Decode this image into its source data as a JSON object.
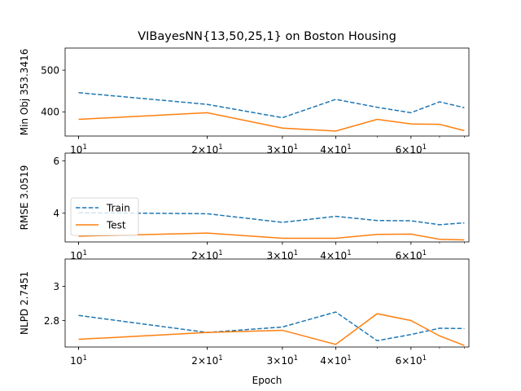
{
  "chart_data": {
    "type": "line",
    "title": "VIBayesNN{13,50,25,1} on Boston Housing",
    "xlabel": "Epoch",
    "xscale": "log",
    "xlim": [
      9.3,
      82
    ],
    "x": [
      10,
      20,
      30,
      40,
      50,
      60,
      70,
      80
    ],
    "x_ticks": [
      {
        "value": 10,
        "base": "10",
        "exp": "1",
        "coef": ""
      },
      {
        "value": 20,
        "base": "10",
        "exp": "1",
        "coef": "2×"
      },
      {
        "value": 30,
        "base": "10",
        "exp": "1",
        "coef": "3×"
      },
      {
        "value": 40,
        "base": "10",
        "exp": "1",
        "coef": "4×"
      },
      {
        "value": 60,
        "base": "10",
        "exp": "1",
        "coef": "6×"
      }
    ],
    "legend": {
      "placement": "left",
      "panel": 1,
      "entries": [
        "Train",
        "Test"
      ]
    },
    "colors": {
      "Train": "#1f77b4",
      "Test": "#ff7f0e"
    },
    "panels": [
      {
        "ylabel": "Min Obj 353.3416",
        "ylim": [
          342,
          553
        ],
        "yticks": [
          400,
          500
        ],
        "series": [
          {
            "name": "Train",
            "style": "dashed",
            "values": [
              446,
              418,
              386,
              430,
              411,
              398,
              424,
              410
            ]
          },
          {
            "name": "Test",
            "style": "solid",
            "values": [
              382,
              398,
              361,
              354,
              382,
              371,
              370,
              355
            ]
          }
        ]
      },
      {
        "ylabel": "RMSE 3.0519",
        "ylim": [
          2.9,
          6.3
        ],
        "yticks": [
          4,
          6
        ],
        "series": [
          {
            "name": "Train",
            "style": "dashed",
            "values": [
              4.02,
              3.98,
              3.65,
              3.88,
              3.72,
              3.71,
              3.56,
              3.63
            ]
          },
          {
            "name": "Test",
            "style": "solid",
            "values": [
              3.12,
              3.24,
              3.04,
              3.04,
              3.19,
              3.2,
              3.0,
              2.98
            ]
          }
        ]
      },
      {
        "ylabel": "NLPD 2.7451",
        "ylim": [
          2.645,
          3.16
        ],
        "yticks": [
          2.8,
          3.0
        ],
        "series": [
          {
            "name": "Train",
            "style": "dashed",
            "values": [
              2.83,
              2.73,
              2.762,
              2.85,
              2.682,
              2.718,
              2.755,
              2.753
            ]
          },
          {
            "name": "Test",
            "style": "solid",
            "values": [
              2.69,
              2.73,
              2.743,
              2.66,
              2.84,
              2.8,
              2.71,
              2.654
            ]
          }
        ]
      }
    ]
  }
}
